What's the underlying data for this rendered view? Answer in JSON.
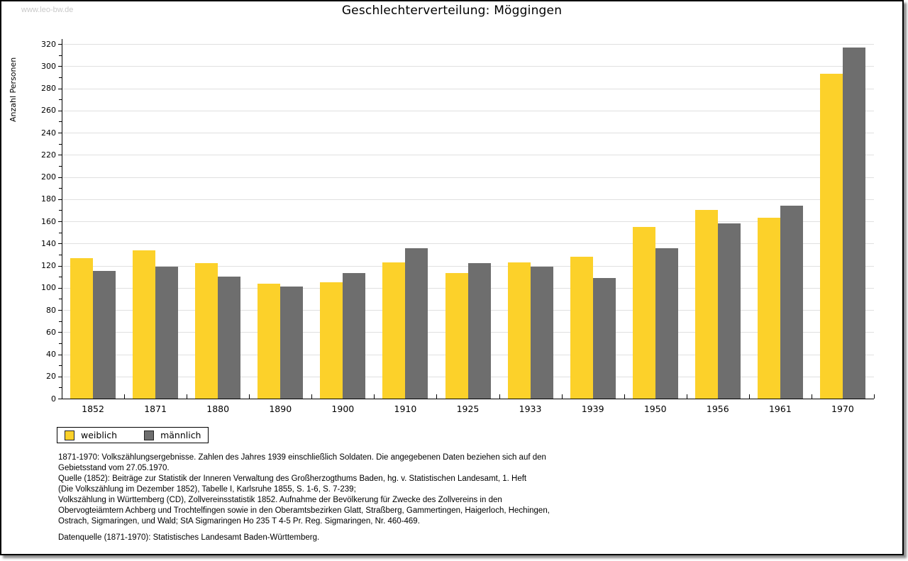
{
  "watermark": "www.leo-bw.de",
  "header": {
    "title": "Geschlechterverteilung: Möggingen"
  },
  "chart_data": {
    "type": "bar",
    "title": "Geschlechterverteilung: Möggingen",
    "xlabel": "",
    "ylabel": "Anzahl Personen",
    "ylim": [
      0,
      320
    ],
    "ytick_major": 20,
    "ytick_minor": 10,
    "grid": true,
    "legend_position": "bottom-left",
    "categories": [
      "1852",
      "1871",
      "1880",
      "1890",
      "1900",
      "1910",
      "1925",
      "1933",
      "1939",
      "1950",
      "1956",
      "1961",
      "1970"
    ],
    "series": [
      {
        "name": "weiblich",
        "color": "#fcd12a",
        "values": [
          127,
          134,
          122,
          104,
          105,
          123,
          113,
          123,
          128,
          155,
          170,
          163,
          293
        ]
      },
      {
        "name": "männlich",
        "color": "#6e6e6e",
        "values": [
          115,
          119,
          110,
          101,
          113,
          136,
          122,
          119,
          109,
          136,
          158,
          174,
          317
        ]
      }
    ]
  },
  "footnotes": [
    "1871-1970: Volkszählungsergebnisse. Zahlen des Jahres 1939 einschließlich Soldaten. Die angegebenen Daten beziehen sich auf den",
    "Gebietsstand vom 27.05.1970.",
    "Quelle (1852): Beiträge zur Statistik der Inneren Verwaltung des Großherzogthums Baden, hg. v. Statistischen Landesamt, 1. Heft",
    "(Die Volkszählung im Dezember 1852), Tabelle I, Karlsruhe 1855, S. 1-6, S. 7-239;",
    "Volkszählung in Württemberg (CD), Zollvereinsstatistik 1852. Aufnahme der Bevölkerung für Zwecke des Zollvereins in den",
    "Obervogteiämtern Achberg und Trochtelfingen sowie in den Oberamtsbezirken Glatt, Straßberg, Gammertingen, Haigerloch, Hechingen,",
    "Ostrach, Sigmaringen, und Wald; StA Sigmaringen Ho 235 T 4-5 Pr. Reg. Sigmaringen, Nr. 460-469."
  ],
  "datasource": "Datenquelle (1871-1970): Statistisches Landesamt Baden-Württemberg."
}
